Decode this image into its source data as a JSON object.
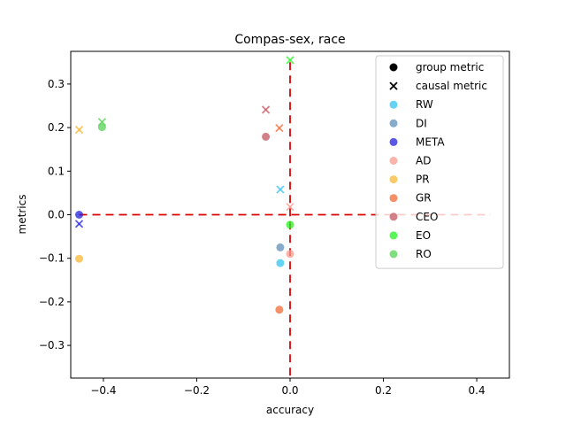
{
  "chart_data": {
    "type": "scatter",
    "title": "Compas-sex, race",
    "xlabel": "accuracy",
    "ylabel": "metrics",
    "xlim": [
      -0.47,
      0.47
    ],
    "ylim": [
      -0.375,
      0.375
    ],
    "xticks": [
      -0.4,
      -0.2,
      0.0,
      0.2,
      0.4
    ],
    "yticks": [
      -0.3,
      -0.2,
      -0.1,
      0.0,
      0.1,
      0.2,
      0.3
    ],
    "xtick_labels": [
      "−0.4",
      "−0.2",
      "0.0",
      "0.2",
      "0.4"
    ],
    "ytick_labels": [
      "−0.3",
      "−0.2",
      "−0.1",
      "0.0",
      "0.1",
      "0.2",
      "0.3"
    ],
    "grid": false,
    "reference_lines": {
      "color": "#dd0000",
      "style": "dashed",
      "x": 0.0,
      "y": 0.0
    },
    "legend": {
      "position": "top-right",
      "marker_entries": [
        {
          "label": "group metric",
          "marker": "circle"
        },
        {
          "label": "causal metric",
          "marker": "x"
        }
      ]
    },
    "series": [
      {
        "name": "RW",
        "color": "#33c3f2",
        "group": {
          "x": -0.021,
          "y": -0.111
        },
        "causal": {
          "x": -0.021,
          "y": 0.058
        }
      },
      {
        "name": "DI",
        "color": "#5f8fb8",
        "group": {
          "x": -0.021,
          "y": -0.075
        },
        "causal": null
      },
      {
        "name": "META",
        "color": "#2222dd",
        "group": {
          "x": -0.452,
          "y": 0.0
        },
        "causal": {
          "x": -0.452,
          "y": -0.021
        }
      },
      {
        "name": "AD",
        "color": "#f99a8e",
        "group": {
          "x": 0.0,
          "y": -0.09
        },
        "causal": {
          "x": 0.0,
          "y": 0.018
        }
      },
      {
        "name": "PR",
        "color": "#fab731",
        "group": {
          "x": -0.452,
          "y": -0.101
        },
        "causal": {
          "x": -0.452,
          "y": 0.195
        }
      },
      {
        "name": "GR",
        "color": "#f26a35",
        "group": {
          "x": -0.023,
          "y": -0.218
        },
        "causal": {
          "x": -0.023,
          "y": 0.199
        }
      },
      {
        "name": "CEO",
        "color": "#c55660",
        "group": {
          "x": -0.052,
          "y": 0.179
        },
        "causal": {
          "x": -0.052,
          "y": 0.241
        }
      },
      {
        "name": "EO",
        "color": "#22f222",
        "group": {
          "x": 0.0,
          "y": -0.023
        },
        "causal": {
          "x": 0.0,
          "y": 0.355
        }
      },
      {
        "name": "RO",
        "color": "#55d155",
        "group": {
          "x": -0.403,
          "y": 0.201
        },
        "causal": {
          "x": -0.403,
          "y": 0.213
        }
      }
    ]
  }
}
